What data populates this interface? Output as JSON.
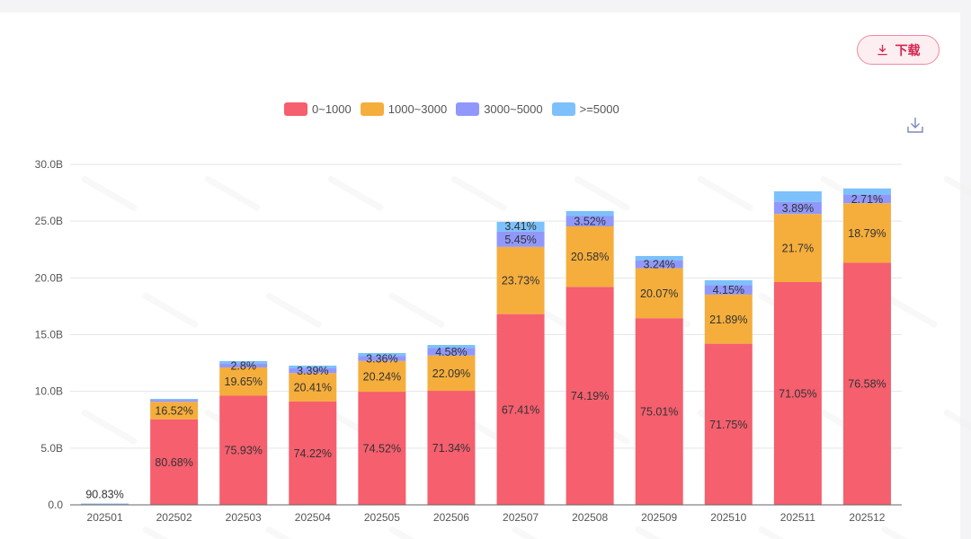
{
  "toolbar": {
    "download_label": "下载",
    "download_icon": "download-icon",
    "save_icon": "save-as-image-icon"
  },
  "watermark": "NWi 跨境通",
  "colors": {
    "0~1000": "#f55f6e",
    "1000~3000": "#f5ae3c",
    "3000~5000": "#9198fb",
    ">=5000": "#7cc1fb",
    "accent": "#d6244f"
  },
  "chart_data": {
    "type": "bar",
    "stacked": true,
    "title": "",
    "xlabel": "",
    "ylabel": "",
    "ylim": [
      0,
      30
    ],
    "y_unit": "B",
    "y_ticks": [
      "0.0",
      "5.0B",
      "10.0B",
      "15.0B",
      "20.0B",
      "25.0B",
      "30.0B"
    ],
    "grid": true,
    "legend_position": "top",
    "categories": [
      "202501",
      "202502",
      "202503",
      "202504",
      "202505",
      "202506",
      "202507",
      "202508",
      "202509",
      "202510",
      "202511",
      "202512"
    ],
    "series": [
      {
        "name": "0~1000",
        "color": "#f55f6e",
        "values": [
          0.09,
          7.54,
          9.62,
          9.11,
          9.97,
          10.05,
          16.81,
          19.21,
          16.45,
          14.2,
          19.63,
          21.34
        ],
        "labels": [
          "90.83%",
          "80.68%",
          "75.93%",
          "74.22%",
          "74.52%",
          "71.34%",
          "67.41%",
          "74.19%",
          "75.01%",
          "71.75%",
          "71.05%",
          "76.58%"
        ]
      },
      {
        "name": "1000~3000",
        "color": "#f5ae3c",
        "values": [
          0.007,
          1.54,
          2.49,
          2.5,
          2.71,
          3.11,
          5.92,
          5.33,
          4.4,
          4.33,
          6.0,
          5.24
        ],
        "labels": [
          "",
          "16.52%",
          "19.65%",
          "20.41%",
          "20.24%",
          "22.09%",
          "23.73%",
          "20.58%",
          "20.07%",
          "21.89%",
          "21.7%",
          "18.79%"
        ]
      },
      {
        "name": "3000~5000",
        "color": "#9198fb",
        "values": [
          0.0015,
          0.17,
          0.35,
          0.42,
          0.45,
          0.65,
          1.36,
          0.91,
          0.71,
          0.82,
          1.07,
          0.76
        ],
        "labels": [
          "",
          "",
          "2.8%",
          "3.39%",
          "3.36%",
          "4.58%",
          "5.45%",
          "3.52%",
          "3.24%",
          "4.15%",
          "3.89%",
          "2.71%"
        ]
      },
      {
        "name": ">=5000",
        "color": "#7cc1fb",
        "values": [
          0.0007,
          0.09,
          0.21,
          0.24,
          0.25,
          0.28,
          0.85,
          0.44,
          0.37,
          0.44,
          0.93,
          0.54
        ],
        "labels": [
          "",
          "",
          "",
          "",
          "",
          "",
          "3.41%",
          "",
          "",
          "",
          "",
          ""
        ]
      }
    ]
  }
}
